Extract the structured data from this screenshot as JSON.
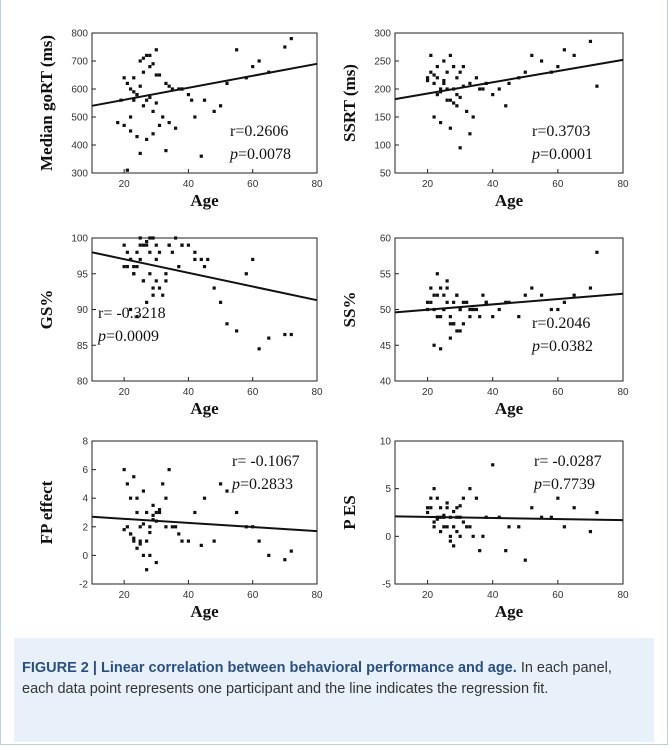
{
  "caption": {
    "label": "FIGURE 2 | Linear correlation between behavioral performance and age.",
    "text": "In each panel, each data point represents one participant and the line indicates the regression fit."
  },
  "chart_data": [
    {
      "type": "scatter",
      "xlabel": "Age",
      "ylabel": "Median goRT (ms)",
      "xlim": [
        10,
        80
      ],
      "ylim": [
        300,
        800
      ],
      "xticks": [
        20,
        40,
        60,
        80
      ],
      "yticks": [
        300,
        400,
        500,
        600,
        700,
        800
      ],
      "fit": {
        "x": [
          10,
          80
        ],
        "y": [
          540,
          690
        ]
      },
      "stats": {
        "r": "r=0.2606",
        "p_label": "p",
        "p_value": "=0.0078"
      },
      "x": [
        20,
        21,
        22,
        24,
        25,
        27,
        28,
        30,
        23,
        26,
        29,
        32,
        34,
        36,
        38,
        22,
        24,
        27,
        29,
        31,
        33,
        25,
        28,
        30,
        21,
        23,
        26,
        35,
        40,
        42,
        45,
        50,
        52,
        55,
        60,
        62,
        65,
        70,
        72,
        58,
        48,
        44,
        37,
        33,
        27,
        24,
        22,
        20,
        26,
        29,
        31,
        25,
        23,
        28,
        30,
        34,
        38,
        41,
        19,
        18
      ],
      "y": [
        640,
        620,
        600,
        580,
        700,
        720,
        680,
        650,
        560,
        540,
        520,
        500,
        480,
        460,
        600,
        450,
        430,
        420,
        440,
        470,
        380,
        370,
        720,
        740,
        310,
        640,
        660,
        600,
        580,
        500,
        560,
        540,
        620,
        740,
        680,
        700,
        660,
        750,
        780,
        640,
        520,
        360,
        600,
        620,
        560,
        580,
        500,
        470,
        710,
        690,
        650,
        610,
        590,
        570,
        550,
        610,
        600,
        560,
        560,
        480
      ]
    },
    {
      "type": "scatter",
      "xlabel": "Age",
      "ylabel": "SSRT (ms)",
      "xlim": [
        10,
        80
      ],
      "ylim": [
        50,
        300
      ],
      "xticks": [
        20,
        40,
        60,
        80
      ],
      "yticks": [
        50,
        100,
        150,
        200,
        250,
        300
      ],
      "fit": {
        "x": [
          10,
          80
        ],
        "y": [
          182,
          252
        ]
      },
      "stats": {
        "r": "r=0.3703",
        "p_label": "p",
        "p_value": "=0.0001"
      },
      "x": [
        20,
        21,
        22,
        24,
        25,
        27,
        28,
        30,
        23,
        26,
        29,
        32,
        34,
        36,
        38,
        22,
        24,
        27,
        29,
        31,
        33,
        25,
        28,
        30,
        21,
        23,
        26,
        35,
        40,
        42,
        45,
        50,
        52,
        55,
        60,
        62,
        65,
        70,
        72,
        58,
        48,
        44,
        37,
        33,
        27,
        24,
        22,
        20,
        26,
        29,
        31,
        25,
        23,
        28,
        30
      ],
      "y": [
        220,
        230,
        210,
        200,
        250,
        260,
        240,
        230,
        190,
        180,
        170,
        160,
        150,
        200,
        210,
        150,
        140,
        130,
        220,
        240,
        120,
        210,
        200,
        95,
        260,
        240,
        230,
        220,
        190,
        200,
        210,
        230,
        260,
        250,
        240,
        270,
        260,
        285,
        205,
        230,
        220,
        170,
        200,
        210,
        180,
        195,
        225,
        215,
        200,
        190,
        205,
        215,
        220,
        175,
        185
      ]
    },
    {
      "type": "scatter",
      "xlabel": "Age",
      "ylabel": "GS%",
      "xlim": [
        10,
        80
      ],
      "ylim": [
        80,
        100
      ],
      "xticks": [
        20,
        40,
        60,
        80
      ],
      "yticks": [
        80,
        85,
        90,
        95,
        100
      ],
      "fit": {
        "x": [
          10,
          80
        ],
        "y": [
          98,
          91.3
        ]
      },
      "stats": {
        "r": "r= -0.3218",
        "p_label": "p",
        "p_value": "=0.0009"
      },
      "x": [
        20,
        21,
        22,
        24,
        25,
        27,
        28,
        30,
        23,
        26,
        29,
        32,
        34,
        36,
        38,
        22,
        24,
        27,
        29,
        31,
        33,
        25,
        28,
        30,
        21,
        23,
        26,
        35,
        40,
        42,
        45,
        50,
        52,
        55,
        60,
        62,
        65,
        70,
        72,
        58,
        48,
        44,
        37,
        33,
        27,
        24,
        22,
        20,
        26,
        29,
        31,
        25,
        23,
        28,
        30,
        34,
        38,
        42,
        46
      ],
      "y": [
        99,
        98,
        97,
        96,
        100,
        99,
        98,
        97,
        95,
        94,
        93,
        92,
        99,
        100,
        99,
        90,
        89,
        91,
        92,
        93,
        94,
        99,
        100,
        99,
        96,
        95,
        94,
        98,
        99,
        97,
        96,
        91,
        88,
        87,
        97,
        84.5,
        86,
        86.5,
        86.5,
        95,
        93,
        97,
        96,
        95,
        99.5,
        98,
        97,
        96,
        99,
        100,
        98,
        97,
        96,
        95,
        94,
        99,
        99,
        98,
        97
      ]
    },
    {
      "type": "scatter",
      "xlabel": "Age",
      "ylabel": "SS%",
      "xlim": [
        10,
        80
      ],
      "ylim": [
        40,
        60
      ],
      "xticks": [
        20,
        40,
        60,
        80
      ],
      "yticks": [
        40,
        45,
        50,
        55,
        60
      ],
      "fit": {
        "x": [
          10,
          80
        ],
        "y": [
          49.6,
          52.2
        ]
      },
      "stats": {
        "r": "r=0.2046",
        "p_label": "p",
        "p_value": "=0.0382"
      },
      "x": [
        20,
        21,
        22,
        24,
        25,
        27,
        28,
        30,
        23,
        26,
        29,
        32,
        34,
        36,
        38,
        22,
        24,
        27,
        29,
        31,
        33,
        25,
        28,
        30,
        21,
        23,
        26,
        35,
        40,
        42,
        45,
        50,
        52,
        55,
        60,
        62,
        65,
        70,
        72,
        58,
        48,
        44,
        37,
        33,
        27,
        24,
        22,
        20,
        26,
        29,
        31,
        25,
        23,
        28,
        30,
        34,
        38
      ],
      "y": [
        50,
        51,
        52,
        53,
        50,
        49,
        48,
        47,
        55,
        54,
        52,
        51,
        50,
        49,
        51,
        45,
        44.5,
        46,
        47,
        48,
        49,
        52,
        51,
        50,
        53,
        52,
        51,
        50,
        49,
        50,
        51,
        52,
        53,
        52,
        50,
        51,
        52,
        53,
        58,
        50,
        49,
        51,
        52,
        50,
        48,
        49,
        50,
        51,
        53,
        52,
        51,
        50,
        49,
        48,
        50,
        50,
        51
      ]
    },
    {
      "type": "scatter",
      "xlabel": "Age",
      "ylabel": "FP effect",
      "xlim": [
        10,
        80
      ],
      "ylim": [
        -2,
        8
      ],
      "xticks": [
        20,
        40,
        60,
        80
      ],
      "yticks": [
        -2,
        0,
        2,
        4,
        6,
        8
      ],
      "fit": {
        "x": [
          10,
          80
        ],
        "y": [
          2.7,
          1.7
        ]
      },
      "stats": {
        "r": "r= -0.1067",
        "p_label": "p",
        "p_value": "=0.2833"
      },
      "x": [
        20,
        21,
        22,
        24,
        25,
        27,
        28,
        30,
        23,
        26,
        29,
        32,
        34,
        36,
        38,
        22,
        24,
        27,
        29,
        31,
        33,
        25,
        28,
        30,
        21,
        23,
        26,
        35,
        40,
        42,
        45,
        50,
        52,
        55,
        60,
        62,
        65,
        70,
        72,
        58,
        48,
        44,
        37,
        33,
        27,
        24,
        22,
        20,
        26,
        29,
        31,
        25,
        23,
        28,
        30
      ],
      "y": [
        6,
        5,
        4,
        3,
        2,
        1,
        0,
        -0.5,
        5.5,
        4.5,
        3.5,
        5,
        6,
        2,
        1,
        1.5,
        0.5,
        -1,
        2.5,
        3,
        4,
        1,
        2,
        3,
        2,
        1,
        0,
        2,
        1,
        3,
        4,
        5,
        4.5,
        3,
        2,
        1,
        0,
        -0.3,
        0.3,
        2,
        1,
        0.7,
        1.5,
        2,
        3,
        4,
        1.5,
        1.8,
        2.2,
        2.8,
        3.2,
        0.8,
        1.2,
        1.6,
        2.4
      ]
    },
    {
      "type": "scatter",
      "xlabel": "Age",
      "ylabel": "P ES",
      "xlim": [
        10,
        80
      ],
      "ylim": [
        -5,
        10
      ],
      "xticks": [
        20,
        40,
        60,
        80
      ],
      "yticks": [
        -5,
        0,
        5,
        10
      ],
      "fit": {
        "x": [
          10,
          80
        ],
        "y": [
          2.1,
          1.7
        ]
      },
      "stats": {
        "r": "r= -0.0287",
        "p_label": "p",
        "p_value": "=0.7739"
      },
      "x": [
        20,
        21,
        22,
        24,
        25,
        27,
        28,
        30,
        23,
        26,
        29,
        32,
        34,
        36,
        38,
        22,
        24,
        27,
        29,
        31,
        33,
        25,
        28,
        30,
        21,
        23,
        26,
        35,
        40,
        42,
        45,
        50,
        52,
        55,
        60,
        62,
        65,
        70,
        72,
        58,
        48,
        44,
        37,
        33,
        27,
        24,
        22,
        20,
        26,
        29,
        31,
        25,
        23,
        28,
        30
      ],
      "y": [
        3,
        4,
        5,
        2,
        1,
        0,
        -1,
        2,
        4,
        3,
        2,
        1,
        0,
        -1.5,
        2,
        1,
        0.5,
        -0.5,
        3,
        4,
        5,
        2,
        1,
        0,
        3,
        2,
        1,
        4,
        7.5,
        2,
        1,
        -2.5,
        3,
        2,
        4,
        1,
        3,
        0.5,
        2.5,
        2,
        1,
        -1.5,
        0,
        1,
        2,
        3,
        1.5,
        2.5,
        3.5,
        0.5,
        1.5,
        2.2,
        1.8,
        2.6,
        3.2
      ]
    }
  ]
}
